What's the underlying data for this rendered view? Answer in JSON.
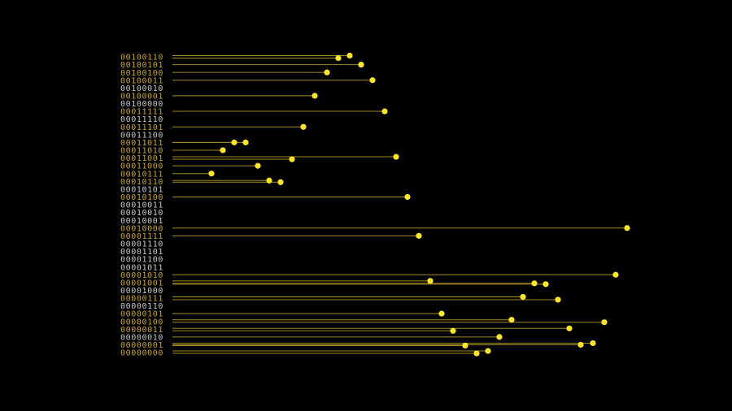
{
  "chart_data": {
    "type": "lollipop",
    "colors": {
      "background": "#000000",
      "active_label": "#c8a428",
      "inactive_label": "#c8c8c8",
      "stem": "#a08a24",
      "dot": "#ffe62e"
    },
    "rows": [
      {
        "label": "00100110",
        "active": true,
        "stems": [
          {
            "end": 430,
            "dy": -1.5
          },
          {
            "end": 416,
            "dy": 1.5
          }
        ]
      },
      {
        "label": "00100101",
        "active": true,
        "stems": [
          {
            "end": 444,
            "dy": 0
          }
        ]
      },
      {
        "label": "00100100",
        "active": true,
        "stems": [
          {
            "end": 402,
            "dy": 0
          }
        ]
      },
      {
        "label": "00100011",
        "active": true,
        "stems": [
          {
            "end": 458,
            "dy": 0
          }
        ]
      },
      {
        "label": "00100010",
        "active": false,
        "stems": []
      },
      {
        "label": "00100001",
        "active": true,
        "stems": [
          {
            "end": 387,
            "dy": 0
          }
        ]
      },
      {
        "label": "00100000",
        "active": false,
        "stems": []
      },
      {
        "label": "00011111",
        "active": true,
        "stems": [
          {
            "end": 473,
            "dy": 0
          }
        ]
      },
      {
        "label": "00011110",
        "active": false,
        "stems": []
      },
      {
        "label": "00011101",
        "active": true,
        "stems": [
          {
            "end": 373,
            "dy": 0
          }
        ]
      },
      {
        "label": "00011100",
        "active": false,
        "stems": []
      },
      {
        "label": "00011011",
        "active": true,
        "stems": [
          {
            "end": 288,
            "dy": 0
          },
          {
            "end": 302,
            "dy": 0
          }
        ]
      },
      {
        "label": "00011010",
        "active": true,
        "stems": [
          {
            "end": 274,
            "dy": 0
          }
        ]
      },
      {
        "label": "00011001",
        "active": true,
        "stems": [
          {
            "end": 487,
            "dy": -1.5
          },
          {
            "end": 359,
            "dy": 1.5
          }
        ]
      },
      {
        "label": "00011000",
        "active": true,
        "stems": [
          {
            "end": 317,
            "dy": 0
          }
        ]
      },
      {
        "label": "00010111",
        "active": true,
        "stems": [
          {
            "end": 260,
            "dy": 0
          }
        ]
      },
      {
        "label": "00010110",
        "active": true,
        "stems": [
          {
            "end": 331,
            "dy": -1
          },
          {
            "end": 345,
            "dy": 1
          }
        ]
      },
      {
        "label": "00010101",
        "active": false,
        "stems": []
      },
      {
        "label": "00010100",
        "active": true,
        "stems": [
          {
            "end": 501,
            "dy": 0
          }
        ]
      },
      {
        "label": "00010011",
        "active": false,
        "stems": []
      },
      {
        "label": "00010010",
        "active": false,
        "stems": []
      },
      {
        "label": "00010001",
        "active": false,
        "stems": []
      },
      {
        "label": "00010000",
        "active": true,
        "stems": [
          {
            "end": 771,
            "dy": 0
          }
        ]
      },
      {
        "label": "00001111",
        "active": true,
        "stems": [
          {
            "end": 515,
            "dy": 0
          }
        ]
      },
      {
        "label": "00001110",
        "active": false,
        "stems": []
      },
      {
        "label": "00001101",
        "active": false,
        "stems": []
      },
      {
        "label": "00001100",
        "active": false,
        "stems": []
      },
      {
        "label": "00001011",
        "active": false,
        "stems": []
      },
      {
        "label": "00001010",
        "active": true,
        "stems": [
          {
            "end": 757,
            "dy": 0
          }
        ]
      },
      {
        "label": "00001001",
        "active": true,
        "stems": [
          {
            "end": 529,
            "dy": -2
          },
          {
            "end": 657,
            "dy": 1
          },
          {
            "end": 671,
            "dy": 2
          }
        ]
      },
      {
        "label": "00001000",
        "active": false,
        "stems": []
      },
      {
        "label": "00000111",
        "active": true,
        "stems": [
          {
            "end": 643,
            "dy": -1.5
          },
          {
            "end": 686,
            "dy": 2
          }
        ]
      },
      {
        "label": "00000110",
        "active": false,
        "stems": []
      },
      {
        "label": "00000101",
        "active": true,
        "stems": [
          {
            "end": 543,
            "dy": 0
          }
        ]
      },
      {
        "label": "00000100",
        "active": true,
        "stems": [
          {
            "end": 629,
            "dy": -2
          },
          {
            "end": 743,
            "dy": 1
          }
        ]
      },
      {
        "label": "00000011",
        "active": true,
        "stems": [
          {
            "end": 700,
            "dy": -1
          },
          {
            "end": 557,
            "dy": 2
          }
        ]
      },
      {
        "label": "00000010",
        "active": false,
        "stems": [
          {
            "end": 614,
            "dy": 0
          }
        ]
      },
      {
        "label": "00000001",
        "active": true,
        "stems": [
          {
            "end": 729,
            "dy": -2
          },
          {
            "end": 714,
            "dy": 0
          },
          {
            "end": 572,
            "dy": 1
          }
        ]
      },
      {
        "label": "00000000",
        "active": true,
        "stems": [
          {
            "end": 600,
            "dy": -2
          },
          {
            "end": 586,
            "dy": 1
          }
        ]
      }
    ]
  }
}
